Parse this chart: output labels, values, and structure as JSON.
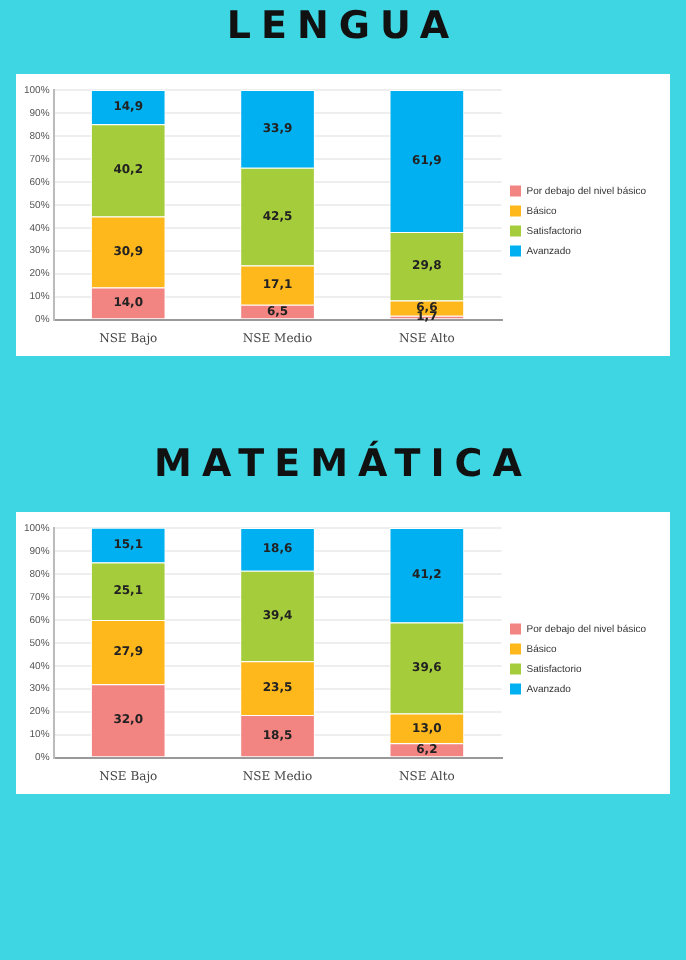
{
  "chart_data": [
    {
      "type": "bar",
      "title": "LENGUA",
      "stacked": true,
      "categories": [
        "NSE Bajo",
        "NSE Medio",
        "NSE Alto"
      ],
      "ylim": [
        0,
        100
      ],
      "yticks": [
        {
          "value": 0,
          "label": "0%"
        },
        {
          "value": 10,
          "label": "10%"
        },
        {
          "value": 20,
          "label": "20%"
        },
        {
          "value": 30,
          "label": "30%"
        },
        {
          "value": 40,
          "label": "40%"
        },
        {
          "value": 50,
          "label": "50%"
        },
        {
          "value": 60,
          "label": "60%"
        },
        {
          "value": 70,
          "label": "70%"
        },
        {
          "value": 80,
          "label": "80%"
        },
        {
          "value": 90,
          "label": "90%"
        },
        {
          "value": 100,
          "label": "100%"
        }
      ],
      "grid": "y",
      "legend": "right",
      "series": [
        {
          "name": "Por debajo del nivel básico",
          "color": "#f28482",
          "values": [
            14.0,
            6.5,
            1.7
          ],
          "value_labels": [
            "14,0",
            "6,5",
            "1,7"
          ]
        },
        {
          "name": "Básico",
          "color": "#ffb81c",
          "values": [
            30.9,
            17.1,
            6.6
          ],
          "value_labels": [
            "30,9",
            "17,1",
            "6,6"
          ]
        },
        {
          "name": "Satisfactorio",
          "color": "#a5cc3a",
          "values": [
            40.2,
            42.5,
            29.8
          ],
          "value_labels": [
            "40,2",
            "42,5",
            "29,8"
          ]
        },
        {
          "name": "Avanzado",
          "color": "#00b0f0",
          "values": [
            14.9,
            33.9,
            61.9
          ],
          "value_labels": [
            "14,9",
            "33,9",
            "61,9"
          ]
        }
      ]
    },
    {
      "type": "bar",
      "title": "MATEMÁTICA",
      "stacked": true,
      "categories": [
        "NSE Bajo",
        "NSE Medio",
        "NSE Alto"
      ],
      "ylim": [
        0,
        100
      ],
      "yticks": [
        {
          "value": 0,
          "label": "0%"
        },
        {
          "value": 10,
          "label": "10%"
        },
        {
          "value": 20,
          "label": "20%"
        },
        {
          "value": 30,
          "label": "30%"
        },
        {
          "value": 40,
          "label": "40%"
        },
        {
          "value": 50,
          "label": "50%"
        },
        {
          "value": 60,
          "label": "60%"
        },
        {
          "value": 70,
          "label": "70%"
        },
        {
          "value": 80,
          "label": "80%"
        },
        {
          "value": 90,
          "label": "90%"
        },
        {
          "value": 100,
          "label": "100%"
        }
      ],
      "grid": "y",
      "legend": "right",
      "series": [
        {
          "name": "Por debajo del nivel básico",
          "color": "#f28482",
          "values": [
            32.0,
            18.5,
            6.2
          ],
          "value_labels": [
            "32,0",
            "18,5",
            "6,2"
          ]
        },
        {
          "name": "Básico",
          "color": "#ffb81c",
          "values": [
            27.9,
            23.5,
            13.0
          ],
          "value_labels": [
            "27,9",
            "23,5",
            "13,0"
          ]
        },
        {
          "name": "Satisfactorio",
          "color": "#a5cc3a",
          "values": [
            25.1,
            39.4,
            39.6
          ],
          "value_labels": [
            "25,1",
            "39,4",
            "39,6"
          ]
        },
        {
          "name": "Avanzado",
          "color": "#00b0f0",
          "values": [
            15.1,
            18.6,
            41.2
          ],
          "value_labels": [
            "15,1",
            "18,6",
            "41,2"
          ]
        }
      ]
    }
  ]
}
